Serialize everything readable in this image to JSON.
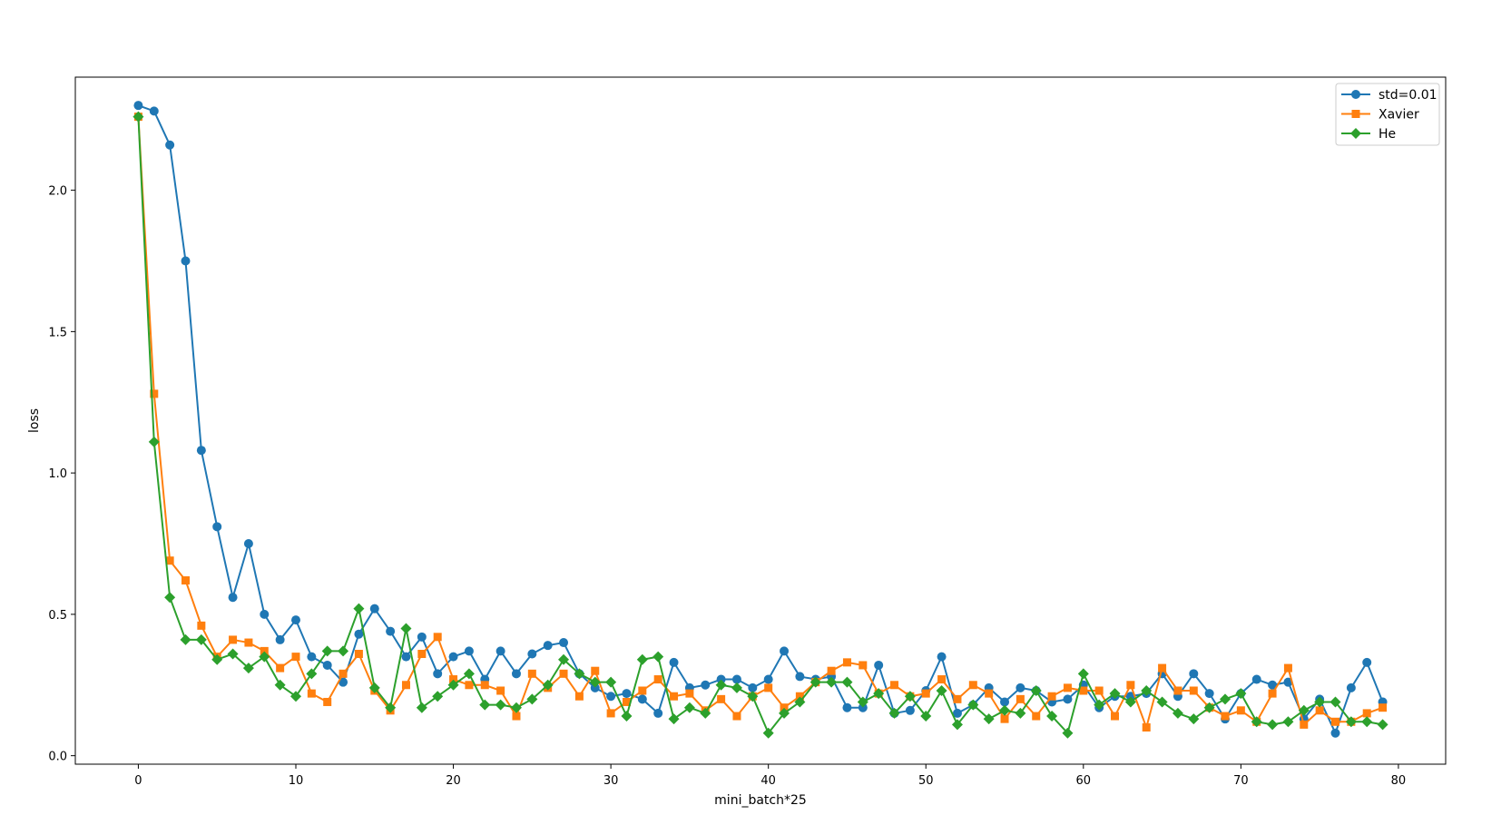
{
  "chart_data": {
    "type": "line",
    "title": "",
    "xlabel": "mini_batch*25",
    "ylabel": "loss",
    "xlim": [
      -4,
      83
    ],
    "ylim": [
      -0.03,
      2.4
    ],
    "xticks": [
      0,
      10,
      20,
      30,
      40,
      50,
      60,
      70,
      80
    ],
    "yticks": [
      0.0,
      0.5,
      1.0,
      1.5,
      2.0
    ],
    "legend_position": "top-right",
    "grid": false,
    "series": [
      {
        "name": "std=0.01",
        "color": "#1f77b4",
        "marker": "circle",
        "values": [
          2.3,
          2.28,
          2.16,
          1.75,
          1.08,
          0.81,
          0.56,
          0.75,
          0.5,
          0.41,
          0.48,
          0.35,
          0.32,
          0.26,
          0.43,
          0.52,
          0.44,
          0.35,
          0.42,
          0.29,
          0.35,
          0.37,
          0.27,
          0.37,
          0.29,
          0.36,
          0.39,
          0.4,
          0.29,
          0.24,
          0.21,
          0.22,
          0.2,
          0.15,
          0.33,
          0.24,
          0.25,
          0.27,
          0.27,
          0.24,
          0.27,
          0.37,
          0.28,
          0.27,
          0.28,
          0.17,
          0.17,
          0.32,
          0.15,
          0.16,
          0.23,
          0.35,
          0.15,
          0.18,
          0.24,
          0.19,
          0.24,
          0.23,
          0.19,
          0.2,
          0.25,
          0.17,
          0.21,
          0.21,
          0.22,
          0.29,
          0.21,
          0.29,
          0.22,
          0.13,
          0.22,
          0.27,
          0.25,
          0.26,
          0.13,
          0.2,
          0.08,
          0.24,
          0.33,
          0.19
        ]
      },
      {
        "name": "Xavier",
        "color": "#ff7f0e",
        "marker": "square",
        "values": [
          2.26,
          1.28,
          0.69,
          0.62,
          0.46,
          0.35,
          0.41,
          0.4,
          0.37,
          0.31,
          0.35,
          0.22,
          0.19,
          0.29,
          0.36,
          0.23,
          0.16,
          0.25,
          0.36,
          0.42,
          0.27,
          0.25,
          0.25,
          0.23,
          0.14,
          0.29,
          0.24,
          0.29,
          0.21,
          0.3,
          0.15,
          0.19,
          0.23,
          0.27,
          0.21,
          0.22,
          0.16,
          0.2,
          0.14,
          0.21,
          0.24,
          0.17,
          0.21,
          0.26,
          0.3,
          0.33,
          0.32,
          0.22,
          0.25,
          0.21,
          0.22,
          0.27,
          0.2,
          0.25,
          0.22,
          0.13,
          0.2,
          0.14,
          0.21,
          0.24,
          0.23,
          0.23,
          0.14,
          0.25,
          0.1,
          0.31,
          0.23,
          0.23,
          0.17,
          0.14,
          0.16,
          0.12,
          0.22,
          0.31,
          0.11,
          0.16,
          0.12,
          0.12,
          0.15,
          0.17
        ]
      },
      {
        "name": "He",
        "color": "#2ca02c",
        "marker": "diamond",
        "values": [
          2.26,
          1.11,
          0.56,
          0.41,
          0.41,
          0.34,
          0.36,
          0.31,
          0.35,
          0.25,
          0.21,
          0.29,
          0.37,
          0.37,
          0.52,
          0.24,
          0.17,
          0.45,
          0.17,
          0.21,
          0.25,
          0.29,
          0.18,
          0.18,
          0.17,
          0.2,
          0.25,
          0.34,
          0.29,
          0.26,
          0.26,
          0.14,
          0.34,
          0.35,
          0.13,
          0.17,
          0.15,
          0.25,
          0.24,
          0.21,
          0.08,
          0.15,
          0.19,
          0.26,
          0.26,
          0.26,
          0.19,
          0.22,
          0.15,
          0.21,
          0.14,
          0.23,
          0.11,
          0.18,
          0.13,
          0.16,
          0.15,
          0.23,
          0.14,
          0.08,
          0.29,
          0.18,
          0.22,
          0.19,
          0.23,
          0.19,
          0.15,
          0.13,
          0.17,
          0.2,
          0.22,
          0.12,
          0.11,
          0.12,
          0.16,
          0.19,
          0.19,
          0.12,
          0.12,
          0.11
        ]
      }
    ]
  }
}
